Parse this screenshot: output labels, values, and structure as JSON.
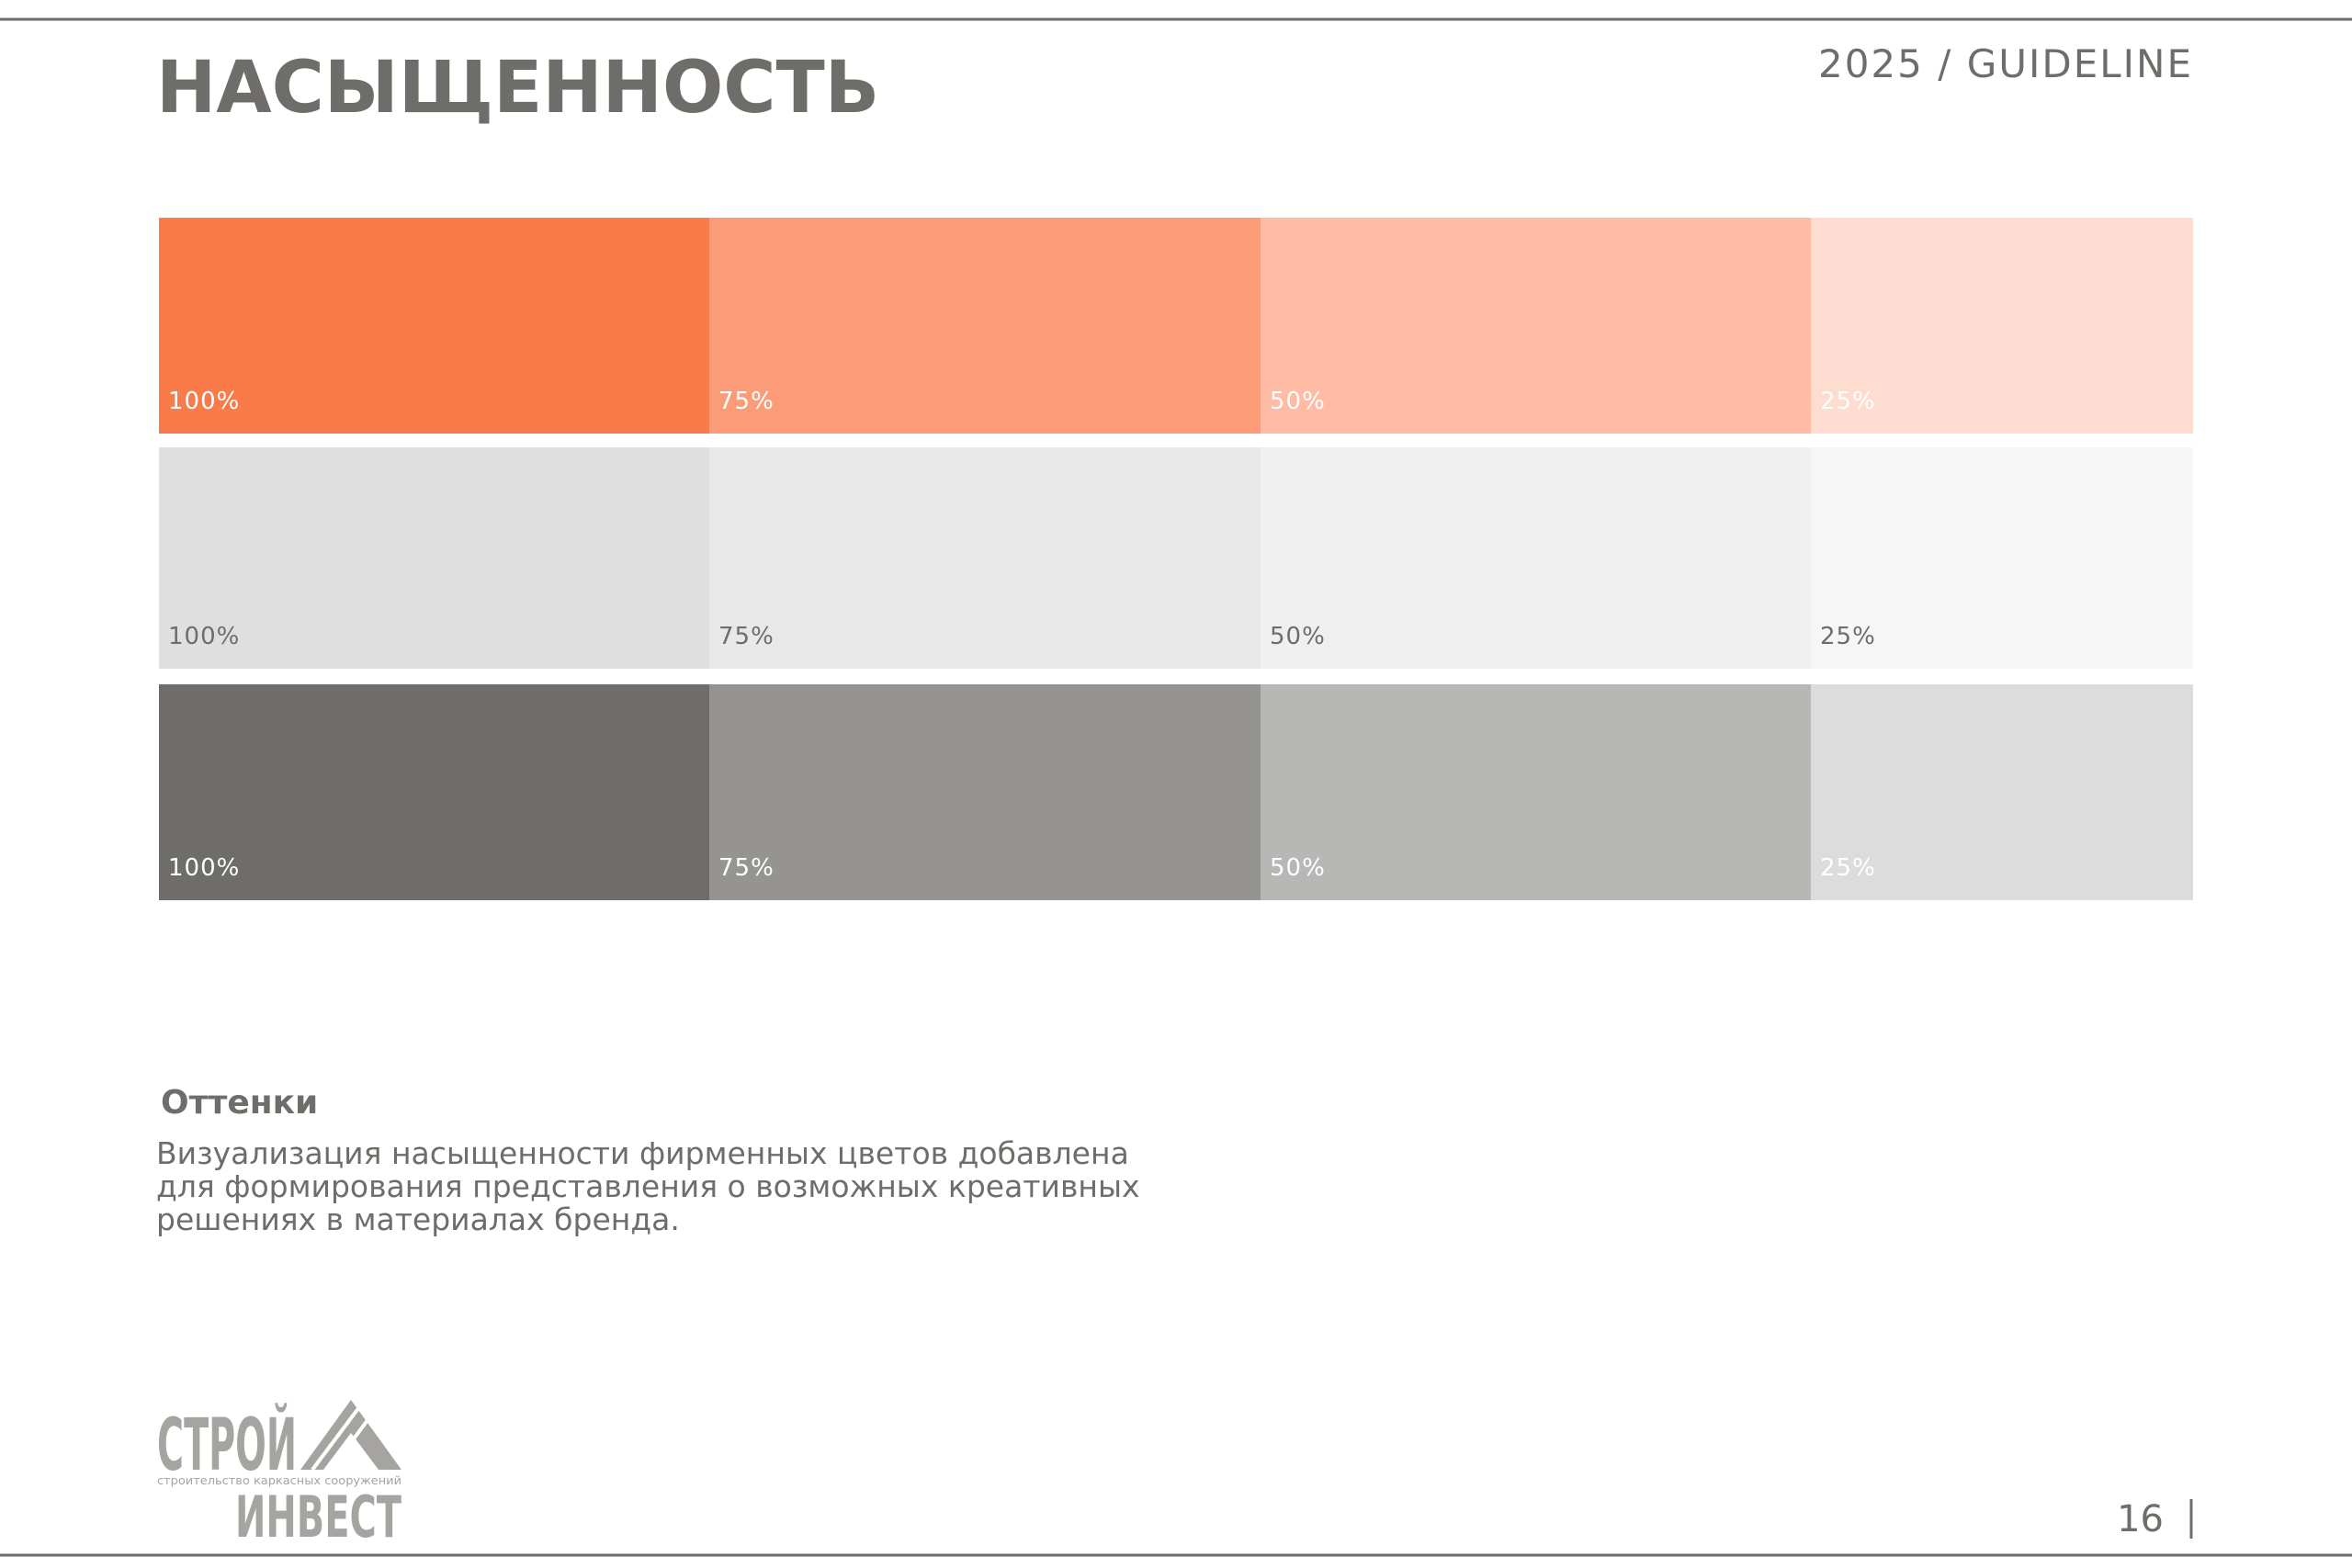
{
  "header": {
    "title": "НАСЫЩЕННОСТЬ",
    "label": "2025 / GUIDELINE"
  },
  "swatches": [
    {
      "colors": [
        "#f97b4a",
        "#fc9b77",
        "#ffbba3",
        "#fedcd0"
      ],
      "label_color": "#ffffff",
      "labels": [
        "100%",
        "75%",
        "50%",
        "25%"
      ]
    },
    {
      "colors": [
        "#dfdfdf",
        "#e8e8e8",
        "#efefef",
        "#f6f6f6"
      ],
      "label_color": "#6e6d69",
      "labels": [
        "100%",
        "75%",
        "50%",
        "25%"
      ]
    },
    {
      "colors": [
        "#6e6d69",
        "#959490",
        "#b7b7b5",
        "#dcdcdc"
      ],
      "label_color": "#ffffff",
      "labels": [
        "100%",
        "75%",
        "50%",
        "25%"
      ]
    }
  ],
  "section": {
    "title": "Оттенки",
    "lines": [
      "Визуализация насыщенности фирменных цветов добавлена",
      "для формирования представления о возможных креативных",
      "решениях в материалах бренда."
    ]
  },
  "logo": {
    "top": "СТРОЙ",
    "tagline": "строительство каркасных сооружений",
    "bottom": "ИНВЕСТ"
  },
  "page_number": "16"
}
